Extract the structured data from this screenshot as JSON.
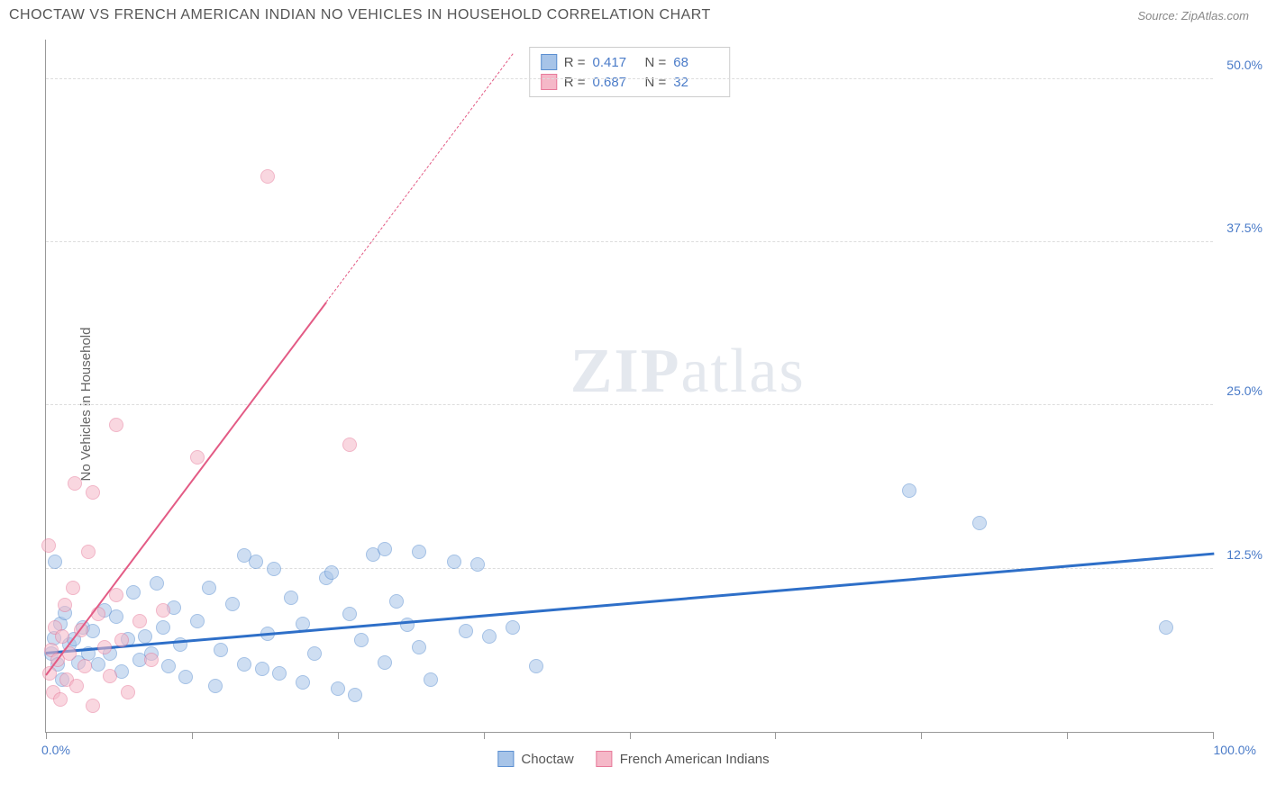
{
  "title": "CHOCTAW VS FRENCH AMERICAN INDIAN NO VEHICLES IN HOUSEHOLD CORRELATION CHART",
  "source_label": "Source: ZipAtlas.com",
  "y_axis_label": "No Vehicles in Household",
  "watermark_bold": "ZIP",
  "watermark_rest": "atlas",
  "chart": {
    "type": "scatter",
    "x_range": [
      0,
      100
    ],
    "y_range": [
      0,
      53
    ],
    "y_gridlines": [
      12.5,
      25.0,
      37.5,
      50.0
    ],
    "y_tick_labels": [
      "12.5%",
      "25.0%",
      "37.5%",
      "50.0%"
    ],
    "x_ticks": [
      0,
      12.5,
      25,
      37.5,
      50,
      62.5,
      75,
      87.5,
      100
    ],
    "x_min_label": "0.0%",
    "x_max_label": "100.0%",
    "background_color": "#ffffff",
    "grid_color": "#dddddd",
    "axis_color": "#999999",
    "tick_label_color": "#4a7bc8",
    "point_radius": 8,
    "point_opacity": 0.55,
    "series": [
      {
        "name": "Choctaw",
        "fill": "#a7c4e8",
        "stroke": "#5b8fd1",
        "trend_color": "#2e6fc8",
        "trend_width": 2.5,
        "R": "0.417",
        "N": "68",
        "trend_start": [
          0,
          6.2
        ],
        "trend_end": [
          100,
          13.8
        ],
        "points": [
          [
            0.5,
            6.0
          ],
          [
            0.7,
            7.2
          ],
          [
            0.8,
            13.0
          ],
          [
            1.0,
            5.2
          ],
          [
            1.2,
            8.3
          ],
          [
            1.4,
            4.0
          ],
          [
            1.6,
            9.1
          ],
          [
            2.0,
            6.7
          ],
          [
            2.4,
            7.1
          ],
          [
            2.8,
            5.3
          ],
          [
            3.2,
            8.0
          ],
          [
            3.6,
            6.0
          ],
          [
            4.0,
            7.7
          ],
          [
            4.5,
            5.2
          ],
          [
            5.0,
            9.3
          ],
          [
            5.5,
            6.0
          ],
          [
            6.0,
            8.8
          ],
          [
            6.5,
            4.6
          ],
          [
            7.0,
            7.1
          ],
          [
            7.5,
            10.7
          ],
          [
            8.0,
            5.5
          ],
          [
            8.5,
            7.3
          ],
          [
            9.0,
            6.0
          ],
          [
            9.5,
            11.4
          ],
          [
            10.0,
            8.0
          ],
          [
            10.5,
            5.0
          ],
          [
            11.0,
            9.5
          ],
          [
            11.5,
            6.7
          ],
          [
            12.0,
            4.2
          ],
          [
            13.0,
            8.5
          ],
          [
            14.0,
            11.0
          ],
          [
            15.0,
            6.3
          ],
          [
            16.0,
            9.8
          ],
          [
            17.0,
            5.2
          ],
          [
            18.0,
            13.0
          ],
          [
            19.0,
            7.5
          ],
          [
            20.0,
            4.5
          ],
          [
            21.0,
            10.3
          ],
          [
            22.0,
            8.3
          ],
          [
            23.0,
            6.0
          ],
          [
            24.0,
            11.8
          ],
          [
            25.0,
            3.3
          ],
          [
            26.0,
            9.0
          ],
          [
            27.0,
            7.0
          ],
          [
            28.0,
            13.6
          ],
          [
            29.0,
            5.3
          ],
          [
            30.0,
            10.0
          ],
          [
            31.0,
            8.2
          ],
          [
            32.0,
            6.5
          ],
          [
            33.0,
            4.0
          ],
          [
            35.0,
            13.0
          ],
          [
            37.0,
            12.8
          ],
          [
            38.0,
            7.3
          ],
          [
            40.0,
            8.0
          ],
          [
            42.0,
            5.0
          ],
          [
            17.0,
            13.5
          ],
          [
            19.5,
            12.5
          ],
          [
            22.0,
            3.8
          ],
          [
            24.5,
            12.2
          ],
          [
            26.5,
            2.8
          ],
          [
            29.0,
            14.0
          ],
          [
            32.0,
            13.8
          ],
          [
            36.0,
            7.7
          ],
          [
            74.0,
            18.5
          ],
          [
            80.0,
            16.0
          ],
          [
            96.0,
            8.0
          ],
          [
            14.5,
            3.5
          ],
          [
            18.5,
            4.8
          ]
        ]
      },
      {
        "name": "French American Indians",
        "fill": "#f5b8c8",
        "stroke": "#e77a9a",
        "trend_color": "#e35b85",
        "trend_width": 2,
        "R": "0.687",
        "N": "32",
        "trend_start": [
          0,
          4.5
        ],
        "trend_solid_end": [
          24,
          33
        ],
        "trend_dash_end": [
          40,
          52
        ],
        "points": [
          [
            0.3,
            4.5
          ],
          [
            0.5,
            6.3
          ],
          [
            0.6,
            3.0
          ],
          [
            0.8,
            8.0
          ],
          [
            1.0,
            5.5
          ],
          [
            1.2,
            2.5
          ],
          [
            1.4,
            7.3
          ],
          [
            1.6,
            9.7
          ],
          [
            1.8,
            4.0
          ],
          [
            2.0,
            6.0
          ],
          [
            2.3,
            11.0
          ],
          [
            2.6,
            3.5
          ],
          [
            3.0,
            7.8
          ],
          [
            3.3,
            5.0
          ],
          [
            3.6,
            13.8
          ],
          [
            4.0,
            2.0
          ],
          [
            4.5,
            9.0
          ],
          [
            5.0,
            6.5
          ],
          [
            5.5,
            4.3
          ],
          [
            6.0,
            10.5
          ],
          [
            6.5,
            7.0
          ],
          [
            7.0,
            3.0
          ],
          [
            8.0,
            8.5
          ],
          [
            9.0,
            5.5
          ],
          [
            10.0,
            9.3
          ],
          [
            4.0,
            18.3
          ],
          [
            6.0,
            23.5
          ],
          [
            2.5,
            19.0
          ],
          [
            13.0,
            21.0
          ],
          [
            26.0,
            22.0
          ],
          [
            19.0,
            42.5
          ],
          [
            0.2,
            14.3
          ]
        ]
      }
    ]
  },
  "bottom_legend": [
    {
      "label": "Choctaw",
      "fill": "#a7c4e8",
      "stroke": "#5b8fd1"
    },
    {
      "label": "French American Indians",
      "fill": "#f5b8c8",
      "stroke": "#e77a9a"
    }
  ]
}
